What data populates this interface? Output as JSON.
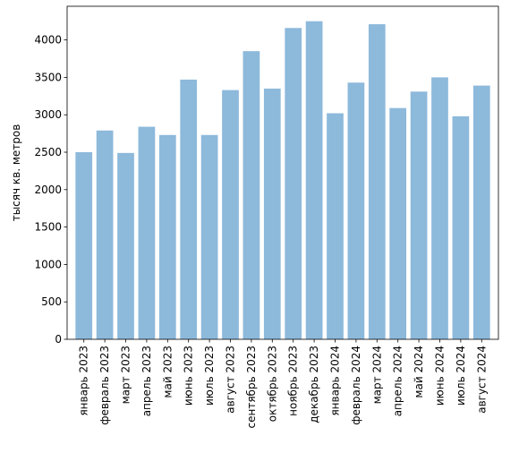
{
  "chart_data": {
    "type": "bar",
    "title": "",
    "xlabel": "",
    "ylabel": "тысяч кв. метров",
    "ylim": [
      0,
      4450
    ],
    "yticks": [
      0,
      500,
      1000,
      1500,
      2000,
      2500,
      3000,
      3500,
      4000
    ],
    "grid": false,
    "categories": [
      "январь 2023",
      "февраль 2023",
      "март 2023",
      "апрель 2023",
      "май 2023",
      "июнь 2023",
      "июль 2023",
      "август 2023",
      "сентябрь 2023",
      "октябрь 2023",
      "ноябрь 2023",
      "декабрь 2023",
      "январь 2024",
      "февраль 2024",
      "март 2024",
      "апрель 2024",
      "май 2024",
      "июнь 2024",
      "июль 2024",
      "август 2024"
    ],
    "values": [
      2500,
      2790,
      2490,
      2840,
      2730,
      3470,
      2730,
      3330,
      3850,
      3350,
      4160,
      4250,
      3020,
      3430,
      4210,
      3090,
      3310,
      3500,
      2980,
      3390
    ],
    "bar_color": "#8db9db"
  }
}
